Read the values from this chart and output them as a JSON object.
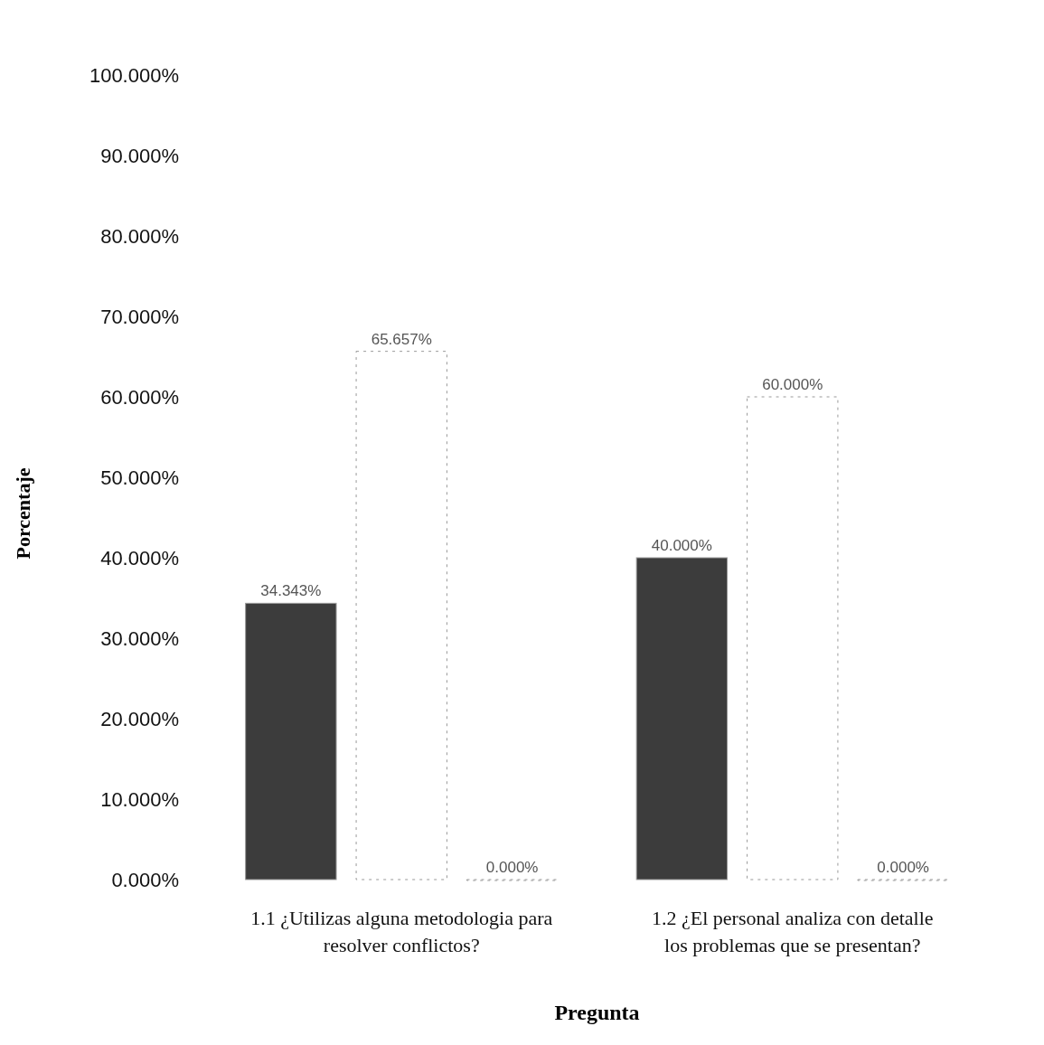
{
  "chart_data": {
    "type": "bar",
    "xlabel": "Pregunta",
    "ylabel": "Porcentaje",
    "categories": [
      "1.1  ¿Utilizas alguna metodologia para resolver conflictos?",
      "1.2  ¿El personal analiza con detalle los problemas que se presentan?"
    ],
    "series": [
      {
        "color": "#3c3c3c",
        "values": [
          34.343,
          40
        ],
        "value_labels": [
          "34.343%",
          "40.000%"
        ]
      },
      {
        "color": "#ffffff",
        "values": [
          65.657,
          60
        ],
        "value_labels": [
          "65.657%",
          "60.000%"
        ]
      },
      {
        "color": "#ffffff",
        "values": [
          0,
          0
        ],
        "value_labels": [
          "0.000%",
          "0.000%"
        ]
      }
    ],
    "ylim": [
      0,
      100
    ],
    "yticks": [
      {
        "value": 0,
        "label": "0.000%"
      },
      {
        "value": 10,
        "label": "10.000%"
      },
      {
        "value": 20,
        "label": "20.000%"
      },
      {
        "value": 30,
        "label": "30.000%"
      },
      {
        "value": 40,
        "label": "40.000%"
      },
      {
        "value": 50,
        "label": "50.000%"
      },
      {
        "value": 60,
        "label": "60.000%"
      },
      {
        "value": 70,
        "label": "70.000%"
      },
      {
        "value": 80,
        "label": "80.000%"
      },
      {
        "value": 90,
        "label": "90.000%"
      },
      {
        "value": 100,
        "label": "100.000%"
      }
    ],
    "grid": false
  }
}
